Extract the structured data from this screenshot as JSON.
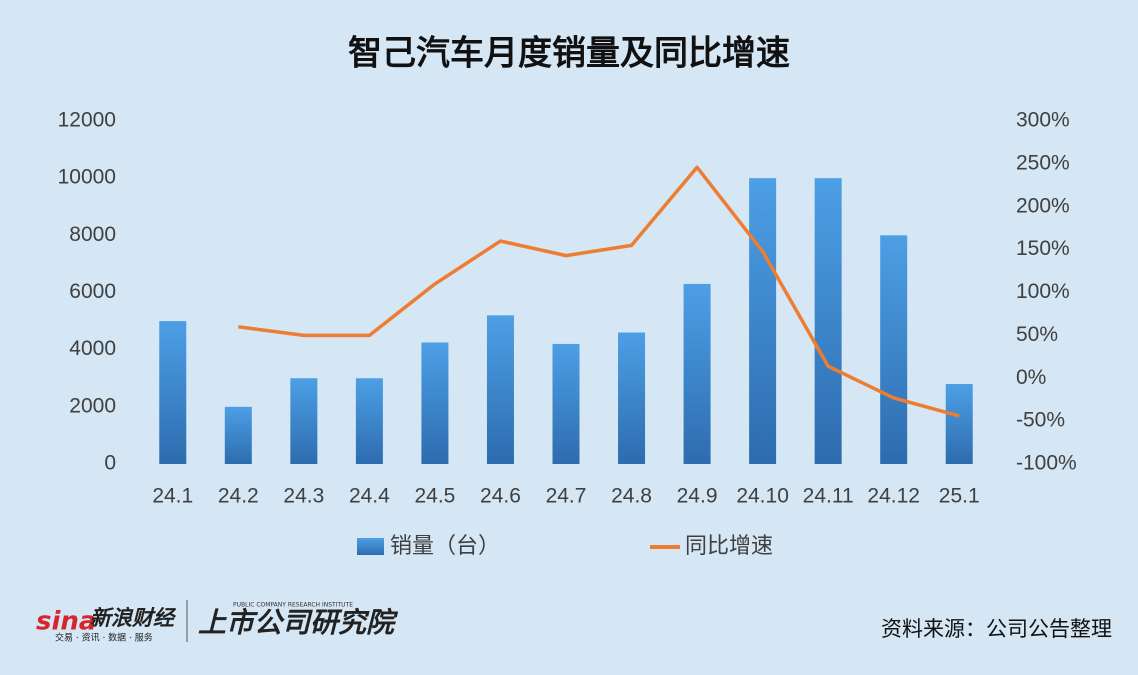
{
  "chart_data": {
    "type": "bar-line",
    "title": "智己汽车月度销量及同比增速",
    "categories": [
      "24.1",
      "24.2",
      "24.3",
      "24.4",
      "24.5",
      "24.6",
      "24.7",
      "24.8",
      "24.9",
      "24.10",
      "24.11",
      "24.12",
      "25.1"
    ],
    "series": [
      {
        "name": "销量（台）",
        "type": "bar",
        "color": "#3c87d2",
        "values": [
          5000,
          2000,
          3000,
          3000,
          4250,
          5200,
          4200,
          4600,
          6300,
          10000,
          10000,
          8000,
          2800
        ]
      },
      {
        "name": "同比增速",
        "type": "line",
        "axis": "y2",
        "color": "#ed7d31",
        "values": [
          null,
          60,
          50,
          50,
          110,
          160,
          143,
          155,
          246,
          148,
          14,
          -23,
          -44
        ]
      }
    ],
    "ylim": [
      0,
      12000
    ],
    "yticks": [
      0,
      2000,
      4000,
      6000,
      8000,
      10000,
      12000
    ],
    "y2lim": [
      -100,
      300
    ],
    "y2ticks": [
      {
        "value": -100,
        "label": "-100%"
      },
      {
        "value": -50,
        "label": "-50%"
      },
      {
        "value": 0,
        "label": "0%"
      },
      {
        "value": 50,
        "label": "50%"
      },
      {
        "value": 100,
        "label": "100%"
      },
      {
        "value": 150,
        "label": "150%"
      },
      {
        "value": 200,
        "label": "200%"
      },
      {
        "value": 250,
        "label": "250%"
      },
      {
        "value": 300,
        "label": "300%"
      }
    ],
    "grid": false
  },
  "footer": {
    "sina": "sina",
    "brand": "新浪财经",
    "brand_tagline": "交易 · 资讯 · 数据 · 服务",
    "institute": "上市公司研究院",
    "institute_en": "PUBLIC COMPANY RESEARCH INSTITUTE",
    "source": "资料来源：公司公告整理"
  }
}
